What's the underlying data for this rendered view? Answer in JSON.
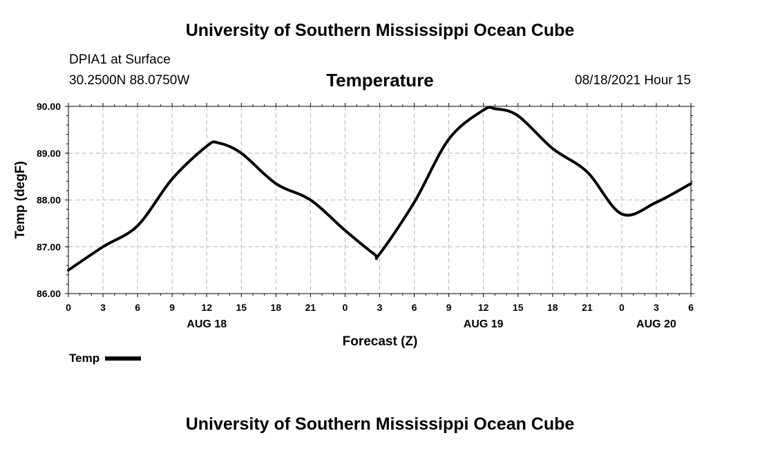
{
  "header": {
    "title": "University of Southern Mississippi Ocean Cube",
    "station": "DPIA1 at Surface",
    "coords": "30.2500N  88.0750W",
    "chart_title": "Temperature",
    "datetime": "08/18/2021 Hour 15"
  },
  "footer": {
    "title": "University of Southern Mississippi Ocean Cube"
  },
  "legend": {
    "label": "Temp"
  },
  "colors": {
    "line": "#000000",
    "grid": "#b4b4b4"
  },
  "chart_data": {
    "type": "line",
    "title": "Temperature",
    "xlabel": "Forecast (Z)",
    "ylabel": "Temp (degF)",
    "xlim": [
      0,
      54
    ],
    "ylim": [
      86.0,
      90.0
    ],
    "grid": true,
    "x_ticks": [
      0,
      3,
      6,
      9,
      12,
      15,
      18,
      21,
      24,
      27,
      30,
      33,
      36,
      39,
      42,
      45,
      48,
      51,
      54
    ],
    "x_tick_labels": [
      "0",
      "3",
      "6",
      "9",
      "12",
      "15",
      "18",
      "21",
      "0",
      "3",
      "6",
      "9",
      "12",
      "15",
      "18",
      "21",
      "0",
      "3",
      "6"
    ],
    "y_ticks": [
      86.0,
      87.0,
      88.0,
      89.0,
      90.0
    ],
    "y_tick_labels": [
      "86.00",
      "87.00",
      "88.00",
      "89.00",
      "90.00"
    ],
    "date_labels": [
      {
        "x": 12,
        "label": "AUG 18"
      },
      {
        "x": 36,
        "label": "AUG 19"
      },
      {
        "x": 51,
        "label": "AUG 20"
      }
    ],
    "series": [
      {
        "name": "Temp",
        "x": [
          0,
          3,
          6,
          9,
          12,
          13,
          15,
          18,
          21,
          24,
          26.5,
          27,
          30,
          33,
          36,
          37,
          39,
          42,
          45,
          48,
          51,
          54
        ],
        "values": [
          86.5,
          87.0,
          87.45,
          88.45,
          89.15,
          89.22,
          89.0,
          88.35,
          88.0,
          87.35,
          86.85,
          86.85,
          87.95,
          89.3,
          89.92,
          89.95,
          89.8,
          89.1,
          88.6,
          87.7,
          87.95,
          88.35
        ]
      }
    ]
  }
}
